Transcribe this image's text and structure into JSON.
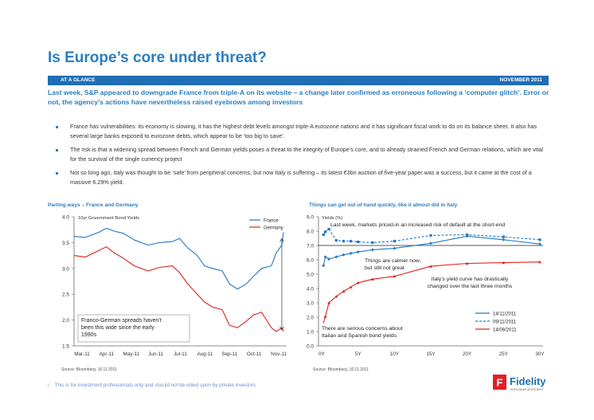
{
  "page": {
    "title": "Is Europe’s core under threat?",
    "banner_left": "AT A GLANCE",
    "banner_right": "NOVEMBER 2011",
    "lead": "Last week, S&P appeared to downgrade France from triple-A on its website – a change later confirmed as erroneous following a ‘computer glitch’. Error or not, the agency’s actions have nevertheless raised eyebrows among investors",
    "bullets": [
      "France has vulnerabilities: its economy is slowing, it has the highest debt levels amongst triple-A eurozone nations and it has significant fiscal work to do on its balance sheet. It also has several large banks exposed to eurozone debts, which appear to be ‘too big to save’.",
      "The risk is that a widening spread between French and German yields poses a threat to the integrity of Europe’s core, and to already strained French and German relations, which are vital for the survival of the single currency project",
      "Not so long ago, Italy was thought to be ‘safe’ from peripheral concerns, but now Italy is suffering – its latest €3bn auction of five-year paper was a success, but it came at the cost of a massive 6.29% yield."
    ],
    "footer": "This is for investment professionals only and should not be relied upon by private investors",
    "logo_text": "Fidelity",
    "logo_sub": "WORLDWIDE INVESTMENT",
    "colors": {
      "accent": "#2b7ec1",
      "banner": "#1f6db4",
      "france": "#1f78c8",
      "germany": "#e0201b",
      "logo": "#e41e26"
    }
  },
  "chart_data": [
    {
      "type": "line",
      "panel_title": "Parting ways – France and Germany",
      "inner_title": "10yr Government Bond Yields",
      "x_ticks": [
        "Mar-11",
        "Apr-11",
        "May-11",
        "Jun-11",
        "Jul-11",
        "Aug-11",
        "Sep-11",
        "Oct-11",
        "Nov-11"
      ],
      "y_ticks": [
        "4.0",
        "3.5",
        "3.0",
        "2.5",
        "2.0",
        "1.5"
      ],
      "ylim": [
        1.5,
        4.0
      ],
      "series": [
        {
          "name": "France",
          "color": "#1f78c8",
          "x": [
            "2011-03-01",
            "2011-03-15",
            "2011-04-01",
            "2011-04-10",
            "2011-04-20",
            "2011-05-01",
            "2011-05-15",
            "2011-06-01",
            "2011-06-15",
            "2011-07-01",
            "2011-07-10",
            "2011-07-20",
            "2011-08-01",
            "2011-08-10",
            "2011-08-20",
            "2011-09-01",
            "2011-09-10",
            "2011-09-20",
            "2011-10-01",
            "2011-10-10",
            "2011-10-20",
            "2011-11-01",
            "2011-11-07",
            "2011-11-14",
            "2011-11-16"
          ],
          "values": [
            3.62,
            3.6,
            3.7,
            3.78,
            3.72,
            3.68,
            3.55,
            3.45,
            3.5,
            3.52,
            3.58,
            3.4,
            3.25,
            3.05,
            3.0,
            2.95,
            2.7,
            2.6,
            2.7,
            2.85,
            3.0,
            3.05,
            3.3,
            3.45,
            3.7
          ]
        },
        {
          "name": "Germany",
          "color": "#e0201b",
          "x": [
            "2011-03-01",
            "2011-03-15",
            "2011-04-01",
            "2011-04-10",
            "2011-04-20",
            "2011-05-01",
            "2011-05-15",
            "2011-06-01",
            "2011-06-15",
            "2011-07-01",
            "2011-07-10",
            "2011-07-20",
            "2011-08-01",
            "2011-08-10",
            "2011-08-20",
            "2011-09-01",
            "2011-09-10",
            "2011-09-20",
            "2011-10-01",
            "2011-10-10",
            "2011-10-20",
            "2011-11-01",
            "2011-11-07",
            "2011-11-14",
            "2011-11-16"
          ],
          "values": [
            3.25,
            3.22,
            3.35,
            3.42,
            3.3,
            3.2,
            3.05,
            2.95,
            3.02,
            3.05,
            2.92,
            2.7,
            2.5,
            2.35,
            2.25,
            2.2,
            1.9,
            1.85,
            1.98,
            2.1,
            2.15,
            1.85,
            1.78,
            1.85,
            1.78
          ]
        }
      ],
      "annotation": "Franco-German spreads haven’t been this wide since the early 1990s",
      "source": "Source: Bloomberg, 16.11.2011"
    },
    {
      "type": "line",
      "panel_title": "Things can get out of hand quickly, like it almost did in Italy",
      "ylabel": "Yields (%)",
      "x_ticks": [
        "0Y",
        "5Y",
        "10Y",
        "15Y",
        "20Y",
        "25Y",
        "30Y"
      ],
      "y_ticks": [
        "9.0",
        "8.0",
        "7.0",
        "6.0",
        "5.0",
        "4.0",
        "3.0",
        "2.0",
        "1.0",
        "0.0"
      ],
      "ylim": [
        0,
        9
      ],
      "reference_line": 7.0,
      "series": [
        {
          "name": "14/11/2011",
          "color": "#1f78c8",
          "style": "solid",
          "x": [
            0.25,
            0.5,
            1,
            2,
            3,
            4,
            5,
            7,
            10,
            15,
            20,
            25,
            30
          ],
          "values": [
            5.6,
            6.2,
            6.05,
            6.2,
            6.35,
            6.45,
            6.55,
            6.7,
            6.8,
            7.15,
            7.65,
            7.4,
            7.1
          ]
        },
        {
          "name": "09/11/2011",
          "color": "#1f78c8",
          "style": "dashed",
          "x": [
            0.25,
            0.5,
            1,
            2,
            3,
            4,
            5,
            7,
            10,
            15,
            20,
            25,
            30
          ],
          "values": [
            7.75,
            7.95,
            8.15,
            7.35,
            7.3,
            7.3,
            7.25,
            7.2,
            7.3,
            7.7,
            7.75,
            7.6,
            7.4
          ]
        },
        {
          "name": "14/08/2011",
          "color": "#e0201b",
          "style": "solid",
          "x": [
            0.25,
            0.5,
            1,
            2,
            3,
            4,
            5,
            7,
            10,
            15,
            20,
            25,
            30
          ],
          "values": [
            1.6,
            2.05,
            3.0,
            3.45,
            3.8,
            4.1,
            4.4,
            4.65,
            4.85,
            5.55,
            5.75,
            5.8,
            5.85
          ]
        }
      ],
      "annotations": [
        "Last week, markets priced-in an increased risk of default at the short-end",
        "Things are calmer now, but still not great",
        "Italy’s yield curve has drastically changed over the last three months",
        "There are serious concerns about Italian and Spanish bond yields"
      ],
      "source": "Source: Bloomberg, 16.11.2011"
    }
  ]
}
